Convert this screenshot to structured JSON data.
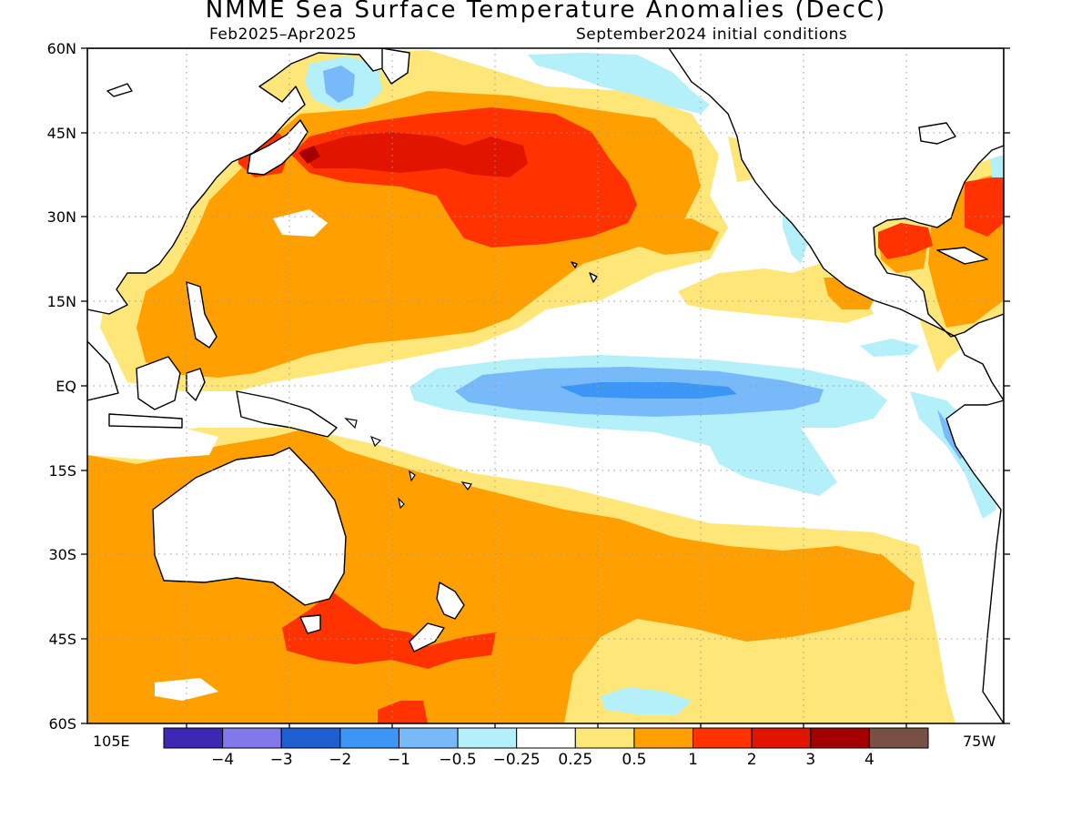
{
  "title": "NMME Sea Surface Temperature Anomalies (DecC)",
  "subtitle_left": "Feb2025–Apr2025",
  "subtitle_right": "September2024 initial conditions",
  "lat_labels": [
    "60N",
    "45N",
    "30N",
    "15N",
    "EQ",
    "15S",
    "30S",
    "45S",
    "60S"
  ],
  "lon_label_left": "105E",
  "lon_label_right": "75W",
  "colorbar": {
    "colors": [
      "#3c28b4",
      "#8278eb",
      "#1e5fd2",
      "#3c96f5",
      "#78b9fa",
      "#b4f0fa",
      "#ffffff",
      "#ffe678",
      "#ffa000",
      "#ff3200",
      "#e11400",
      "#a50000",
      "#785046"
    ],
    "labels": [
      "−4",
      "−3",
      "−2",
      "−1",
      "−0.5",
      "−0.25",
      "0.25",
      "0.5",
      "1",
      "2",
      "3",
      "4"
    ]
  },
  "color_keys": {
    "white": "#ffffff",
    "yellow": "#ffe678",
    "orange": "#ffa000",
    "red_orange": "#ff3200",
    "red": "#e11400",
    "dark_red": "#a50000",
    "light_cyan": "#b4f0fa",
    "light_blue": "#78b9fa",
    "blue": "#3c96f5"
  },
  "map_data": {
    "region": "Pacific Ocean",
    "lon_range": [
      "105E",
      "75W"
    ],
    "lat_range": [
      "60S",
      "60N"
    ],
    "grid": "dotted",
    "features": [
      {
        "name": "North Pacific warm anomaly",
        "anomaly": "1 to 3"
      },
      {
        "name": "Equatorial Pacific cool anomaly",
        "anomaly": "-1 to -2"
      },
      {
        "name": "Tasman Sea warm anomaly",
        "anomaly": "1 to 2"
      },
      {
        "name": "Gulf of Mexico warm anomaly",
        "anomaly": "1 to 2"
      }
    ]
  }
}
